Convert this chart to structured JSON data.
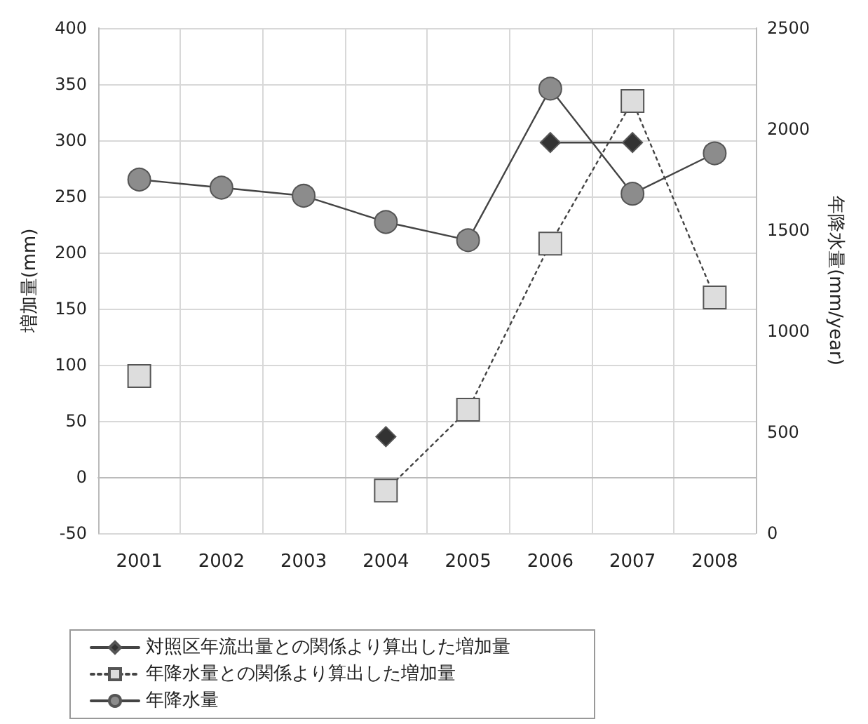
{
  "chart_data": {
    "type": "line",
    "categories": [
      "2001",
      "2002",
      "2003",
      "2004",
      "2005",
      "2006",
      "2007",
      "2008"
    ],
    "ylabel": "増加量(mm)",
    "y2label": "年降水量(mm/year)",
    "ylim": [
      -50,
      400
    ],
    "yticks": [
      -50,
      0,
      50,
      100,
      150,
      200,
      250,
      300,
      350,
      400
    ],
    "y2lim": [
      0,
      2500
    ],
    "y2ticks": [
      0,
      500,
      1000,
      1500,
      2000,
      2500
    ],
    "grid": true,
    "legend": "bottom",
    "series": [
      {
        "name": "対照区年流出量との関係より算出した増加量",
        "color": "#333333",
        "marker": "diamond",
        "line_style": "solid",
        "values": [
          null,
          null,
          null,
          36,
          null,
          298,
          298,
          null
        ]
      },
      {
        "name": "年降水量との関係より算出した増加量",
        "color": "#dddddd",
        "marker": "square",
        "line_style": "dotted",
        "values": [
          90,
          null,
          null,
          -12,
          60,
          208,
          335,
          160
        ]
      },
      {
        "name": "年降水量",
        "color": "#8c8c8c",
        "marker": "circle",
        "line_style": "solid",
        "axis": "y2",
        "values": [
          1750,
          1710,
          1670,
          1540,
          1450,
          2200,
          1680,
          1880
        ]
      }
    ]
  }
}
